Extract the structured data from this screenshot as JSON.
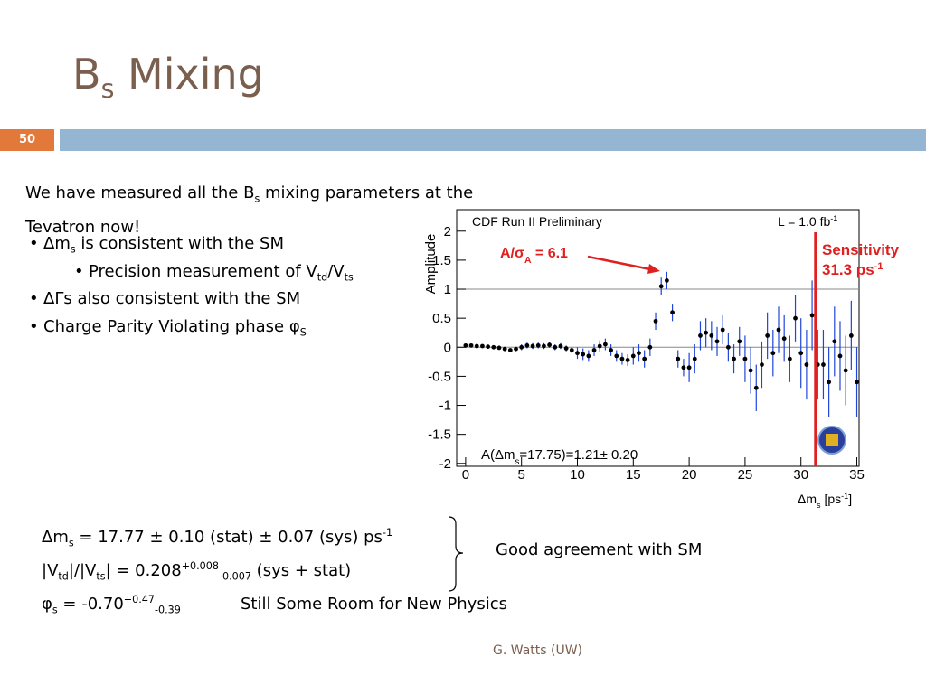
{
  "header": {
    "title": [
      {
        "t": "B"
      },
      {
        "sub": "s"
      },
      {
        "t": " Mixing"
      }
    ],
    "slide_number": "50"
  },
  "intro": [
    {
      "t": "We have measured all the B"
    },
    {
      "sub": "s"
    },
    {
      "t": " mixing parameters at the Tevatron now!"
    }
  ],
  "bullets": [
    {
      "level": 1,
      "text": [
        {
          "t": "Δm"
        },
        {
          "sub": "s"
        },
        {
          "t": " is consistent with the SM"
        }
      ]
    },
    {
      "level": 2,
      "text": [
        {
          "t": "Precision measurement of V"
        },
        {
          "sub": "td"
        },
        {
          "t": "/V"
        },
        {
          "sub": "ts"
        }
      ]
    },
    {
      "level": 1,
      "text": [
        {
          "t": "ΔΓs also consistent with the SM"
        }
      ]
    },
    {
      "level": 1,
      "text": [
        {
          "t": "Charge Parity Violating phase φ"
        },
        {
          "sub": "S"
        }
      ]
    }
  ],
  "results": [
    [
      {
        "t": "Δm"
      },
      {
        "sub": "s"
      },
      {
        "t": " = 17.77 ± 0.10 (stat) ± 0.07 (sys) ps"
      },
      {
        "sup": "-1"
      }
    ],
    [
      {
        "t": "|V"
      },
      {
        "sub": "td"
      },
      {
        "t": "|/|V"
      },
      {
        "sub": "ts"
      },
      {
        "t": "| = 0.208"
      },
      {
        "sup": "+0.008"
      },
      {
        "sub": "-0.007"
      },
      {
        "t": " (sys + stat)"
      }
    ],
    [
      {
        "t": "φ"
      },
      {
        "sub": "s"
      },
      {
        "t": " = -0.70"
      },
      {
        "sup": "+0.47"
      },
      {
        "sub": "-0.39"
      }
    ]
  ],
  "agreement_note": "Good agreement with SM",
  "room_note": "Still Some Room for New Physics",
  "footer": "G. Watts (UW)",
  "chart_data": {
    "type": "scatter",
    "title": "CDF Run II Preliminary",
    "luminosity": [
      {
        "t": "L = 1.0 fb"
      },
      {
        "sup": "-1"
      }
    ],
    "ylabel": "Amplitude",
    "xlabel": [
      {
        "t": "Δm"
      },
      {
        "sub": "s"
      },
      {
        "t": " [ps"
      },
      {
        "sup": "-1"
      },
      {
        "t": "]"
      }
    ],
    "annotation": [
      {
        "t": "A/σ"
      },
      {
        "sub": "A"
      },
      {
        "t": " = 6.1"
      }
    ],
    "result": [
      {
        "t": "A(Δm"
      },
      {
        "sub": "s"
      },
      {
        "t": "=17.75)=1.21± 0.20"
      }
    ],
    "sensitivity_label": "Sensitivity",
    "sensitivity_value": [
      {
        "t": "31.3 ps"
      },
      {
        "sup": "-1"
      }
    ],
    "sensitivity_line": 31.3,
    "reference_lines": [
      0,
      1
    ],
    "color": "#000000",
    "error_color": "#1f45d8",
    "line_color": "#e02020",
    "x": [
      0,
      0.5,
      1,
      1.5,
      2,
      2.5,
      3,
      3.5,
      4,
      4.5,
      5,
      5.5,
      6,
      6.5,
      7,
      7.5,
      8,
      8.5,
      9,
      9.5,
      10,
      10.5,
      11,
      11.5,
      12,
      12.5,
      13,
      13.5,
      14,
      14.5,
      15,
      15.5,
      16,
      16.5,
      17,
      17.5,
      18,
      18.5,
      19,
      19.5,
      20,
      20.5,
      21,
      21.5,
      22,
      22.5,
      23,
      23.5,
      24,
      24.5,
      25,
      25.5,
      26,
      26.5,
      27,
      27.5,
      28,
      28.5,
      29,
      29.5,
      30,
      30.5,
      31,
      31.5,
      32,
      32.5,
      33,
      33.5,
      34,
      34.5,
      35
    ],
    "values": [
      0.03,
      0.03,
      0.02,
      0.02,
      0.01,
      0.0,
      -0.01,
      -0.03,
      -0.05,
      -0.03,
      0.0,
      0.03,
      0.02,
      0.03,
      0.02,
      0.04,
      0.0,
      0.02,
      -0.02,
      -0.05,
      -0.1,
      -0.12,
      -0.15,
      -0.05,
      0.02,
      0.05,
      -0.05,
      -0.15,
      -0.2,
      -0.22,
      -0.15,
      -0.1,
      -0.2,
      0.0,
      0.45,
      1.05,
      1.15,
      0.6,
      -0.2,
      -0.35,
      -0.35,
      -0.2,
      0.2,
      0.25,
      0.2,
      0.1,
      0.3,
      0.0,
      -0.2,
      0.1,
      -0.2,
      -0.4,
      -0.7,
      -0.3,
      0.2,
      -0.1,
      0.3,
      0.15,
      -0.2,
      0.5,
      -0.1,
      -0.3,
      0.55,
      -0.3,
      -0.3,
      -0.6,
      0.1,
      -0.15,
      -0.4,
      0.2,
      -0.6
    ],
    "errors": [
      0.03,
      0.03,
      0.03,
      0.03,
      0.03,
      0.03,
      0.03,
      0.03,
      0.03,
      0.03,
      0.05,
      0.05,
      0.05,
      0.05,
      0.05,
      0.05,
      0.05,
      0.05,
      0.05,
      0.05,
      0.1,
      0.1,
      0.1,
      0.1,
      0.1,
      0.1,
      0.1,
      0.1,
      0.1,
      0.1,
      0.15,
      0.15,
      0.15,
      0.15,
      0.15,
      0.15,
      0.15,
      0.15,
      0.15,
      0.15,
      0.25,
      0.25,
      0.25,
      0.25,
      0.25,
      0.25,
      0.25,
      0.25,
      0.25,
      0.25,
      0.4,
      0.4,
      0.4,
      0.4,
      0.4,
      0.4,
      0.4,
      0.4,
      0.4,
      0.4,
      0.6,
      0.6,
      0.6,
      0.6,
      0.6,
      0.6,
      0.6,
      0.6,
      0.6,
      0.6,
      0.6
    ],
    "xlim": [
      -0.8,
      35.2
    ],
    "ylim": [
      -2.05,
      2.37
    ],
    "xticks": [
      0,
      5,
      10,
      15,
      20,
      25,
      30,
      35
    ],
    "yticks": [
      -2,
      -1.5,
      -1,
      -0.5,
      0,
      0.5,
      1,
      1.5,
      2
    ]
  }
}
